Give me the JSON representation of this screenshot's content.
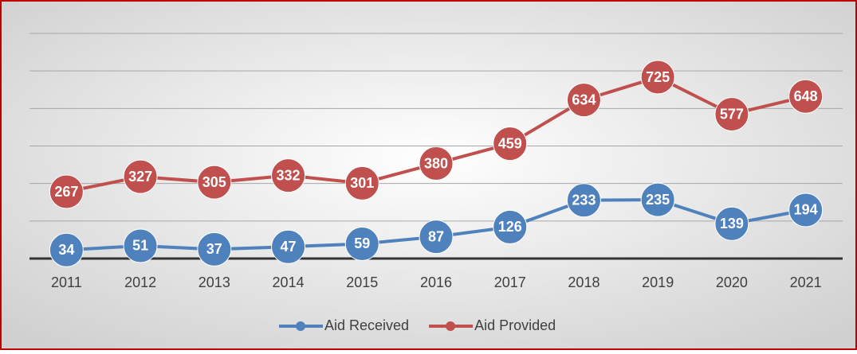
{
  "chart_data": {
    "type": "line",
    "categories": [
      "2011",
      "2012",
      "2013",
      "2014",
      "2015",
      "2016",
      "2017",
      "2018",
      "2019",
      "2020",
      "2021"
    ],
    "series": [
      {
        "name": "Aid Received",
        "color": "#4f81bd",
        "values": [
          34,
          51,
          37,
          47,
          59,
          87,
          126,
          233,
          235,
          139,
          194
        ]
      },
      {
        "name": "Aid Provided",
        "color": "#c0504d",
        "values": [
          267,
          327,
          305,
          332,
          301,
          380,
          459,
          634,
          725,
          577,
          648
        ]
      }
    ],
    "ylim": [
      0,
      900
    ],
    "yticks": [
      0,
      150,
      300,
      450,
      600,
      750,
      900
    ],
    "grid": true,
    "legend": "bottom"
  }
}
